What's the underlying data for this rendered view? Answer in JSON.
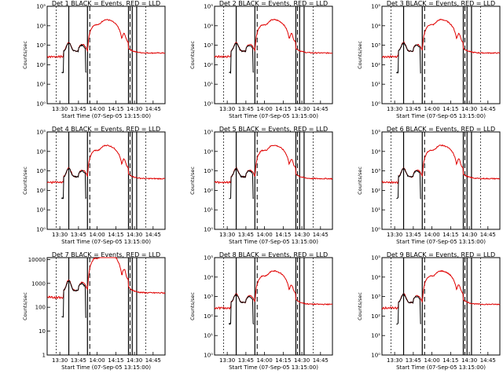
{
  "figure": {
    "bg_color": "#ffffff",
    "events_color": "#000000",
    "lld_color": "#e00000",
    "xlabel": "Start Time (07-Sep-05 13:15:00)",
    "ylabel": "Counts/sec"
  },
  "chart_data": [
    {
      "type": "line",
      "title": "Det 1 BLACK = Events, RED = LLD",
      "xlim": [
        13.33,
        14.91
      ],
      "x_ticks": [
        "13:30",
        "13:45",
        "14:00",
        "14:15",
        "14:30",
        "14:45"
      ],
      "y_ticks": [
        "10⁰",
        "10¹",
        "10²",
        "10³",
        "10⁴",
        "10⁵"
      ],
      "ylim": [
        1,
        100000
      ],
      "series": [
        {
          "name": "Events",
          "color": "#000000"
        },
        {
          "name": "LLD",
          "color": "#e00000"
        }
      ]
    },
    {
      "type": "line",
      "title": "Det 2 BLACK = Events, RED = LLD",
      "xlim": [
        13.33,
        14.91
      ],
      "x_ticks": [
        "13:30",
        "13:45",
        "14:00",
        "14:15",
        "14:30",
        "14:45"
      ],
      "y_ticks": [
        "10⁰",
        "10¹",
        "10²",
        "10³",
        "10⁴",
        "10⁵"
      ],
      "ylim": [
        1,
        100000
      ],
      "series": [
        {
          "name": "Events",
          "color": "#000000"
        },
        {
          "name": "LLD",
          "color": "#e00000"
        }
      ]
    },
    {
      "type": "line",
      "title": "Det 3 BLACK = Events, RED = LLD",
      "xlim": [
        13.33,
        14.91
      ],
      "x_ticks": [
        "13:30",
        "13:45",
        "14:00",
        "14:15",
        "14:30",
        "14:45"
      ],
      "y_ticks": [
        "10⁰",
        "10¹",
        "10²",
        "10³",
        "10⁴",
        "10⁵"
      ],
      "ylim": [
        1,
        100000
      ],
      "series": [
        {
          "name": "Events",
          "color": "#000000"
        },
        {
          "name": "LLD",
          "color": "#e00000"
        }
      ]
    },
    {
      "type": "line",
      "title": "Det 4 BLACK = Events, RED = LLD",
      "xlim": [
        13.33,
        14.91
      ],
      "x_ticks": [
        "13:30",
        "13:45",
        "14:00",
        "14:15",
        "14:30",
        "14:45"
      ],
      "y_ticks": [
        "10⁰",
        "10¹",
        "10²",
        "10³",
        "10⁴",
        "10⁵"
      ],
      "ylim": [
        1,
        100000
      ],
      "series": [
        {
          "name": "Events",
          "color": "#000000"
        },
        {
          "name": "LLD",
          "color": "#e00000"
        }
      ]
    },
    {
      "type": "line",
      "title": "Det 5 BLACK = Events, RED = LLD",
      "xlim": [
        13.33,
        14.91
      ],
      "x_ticks": [
        "13:30",
        "13:45",
        "14:00",
        "14:15",
        "14:30",
        "14:45"
      ],
      "y_ticks": [
        "10⁰",
        "10¹",
        "10²",
        "10³",
        "10⁴",
        "10⁵"
      ],
      "ylim": [
        1,
        100000
      ],
      "series": [
        {
          "name": "Events",
          "color": "#000000"
        },
        {
          "name": "LLD",
          "color": "#e00000"
        }
      ]
    },
    {
      "type": "line",
      "title": "Det 6 BLACK = Events, RED = LLD",
      "xlim": [
        13.33,
        14.91
      ],
      "x_ticks": [
        "13:30",
        "13:45",
        "14:00",
        "14:15",
        "14:30",
        "14:45"
      ],
      "y_ticks": [
        "10⁰",
        "10¹",
        "10²",
        "10³",
        "10⁴",
        "10⁵"
      ],
      "ylim": [
        1,
        100000
      ],
      "series": [
        {
          "name": "Events",
          "color": "#000000"
        },
        {
          "name": "LLD",
          "color": "#e00000"
        }
      ]
    },
    {
      "type": "line",
      "title": "Det 7 BLACK = Events, RED = LLD",
      "xlim": [
        13.33,
        14.91
      ],
      "x_ticks": [
        "13:30",
        "13:45",
        "14:00",
        "14:15",
        "14:30",
        "14:45"
      ],
      "y_ticks": [
        "1",
        "10",
        "100",
        "1000",
        "10000"
      ],
      "ylim": [
        1,
        12000
      ],
      "series": [
        {
          "name": "Events",
          "color": "#000000"
        },
        {
          "name": "LLD",
          "color": "#e00000"
        }
      ]
    },
    {
      "type": "line",
      "title": "Det 8 BLACK = Events, RED = LLD",
      "xlim": [
        13.33,
        14.91
      ],
      "x_ticks": [
        "13:30",
        "13:45",
        "14:00",
        "14:15",
        "14:30",
        "14:45"
      ],
      "y_ticks": [
        "10⁰",
        "10¹",
        "10²",
        "10³",
        "10⁴",
        "10⁵"
      ],
      "ylim": [
        1,
        100000
      ],
      "series": [
        {
          "name": "Events",
          "color": "#000000"
        },
        {
          "name": "LLD",
          "color": "#e00000"
        }
      ]
    },
    {
      "type": "line",
      "title": "Det 9 BLACK = Events, RED = LLD",
      "xlim": [
        13.33,
        14.91
      ],
      "x_ticks": [
        "13:30",
        "13:45",
        "14:00",
        "14:15",
        "14:30",
        "14:45"
      ],
      "y_ticks": [
        "10⁰",
        "10¹",
        "10²",
        "10³",
        "10⁴",
        "10⁵"
      ],
      "ylim": [
        1,
        100000
      ],
      "series": [
        {
          "name": "Events",
          "color": "#000000"
        },
        {
          "name": "LLD",
          "color": "#e00000"
        }
      ]
    }
  ]
}
